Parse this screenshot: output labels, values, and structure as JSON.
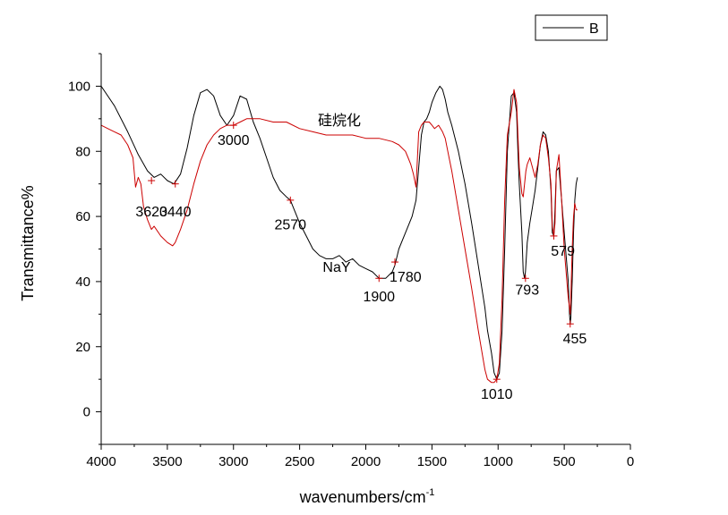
{
  "chart_data": {
    "type": "line",
    "title": "",
    "xlabel": "wavenumbers/cm",
    "xlabel_superscript": "-1",
    "ylabel": "Transmittance%",
    "xlim": [
      4000,
      0
    ],
    "ylim": [
      -10,
      110
    ],
    "x_ticks": [
      "4000",
      "3500",
      "3000",
      "2500",
      "2000",
      "1500",
      "1000",
      "500",
      "0"
    ],
    "y_ticks": [
      "0",
      "20",
      "40",
      "60",
      "80",
      "100"
    ],
    "legend": {
      "position": "top-right",
      "entries": [
        "B"
      ]
    },
    "series": [
      {
        "name": "NaY",
        "color": "#000000",
        "x": [
          4000,
          3900,
          3800,
          3720,
          3650,
          3600,
          3550,
          3500,
          3450,
          3400,
          3350,
          3300,
          3250,
          3200,
          3150,
          3100,
          3050,
          3000,
          2950,
          2900,
          2850,
          2800,
          2750,
          2700,
          2650,
          2600,
          2570,
          2550,
          2500,
          2450,
          2400,
          2350,
          2300,
          2250,
          2200,
          2150,
          2100,
          2050,
          2000,
          1950,
          1900,
          1850,
          1800,
          1780,
          1750,
          1700,
          1650,
          1620,
          1600,
          1580,
          1560,
          1540,
          1520,
          1500,
          1470,
          1440,
          1420,
          1400,
          1380,
          1350,
          1300,
          1250,
          1200,
          1150,
          1100,
          1080,
          1050,
          1030,
          1010,
          990,
          970,
          950,
          930,
          900,
          880,
          860,
          850,
          840,
          820,
          810,
          800,
          793,
          780,
          760,
          740,
          720,
          700,
          680,
          660,
          640,
          620,
          600,
          590,
          579,
          570,
          560,
          540,
          520,
          500,
          480,
          470,
          460,
          455,
          450,
          440,
          430,
          420,
          410,
          400
        ],
        "y": [
          100,
          94,
          86,
          79,
          74,
          72,
          73,
          71,
          70,
          73,
          81,
          91,
          98,
          99,
          97,
          91,
          88,
          91,
          97,
          96,
          89,
          84,
          78,
          72,
          68,
          66,
          65,
          63,
          58,
          54,
          50,
          48,
          47,
          47,
          48,
          46,
          47,
          45,
          44,
          43,
          41,
          41,
          43,
          45,
          50,
          55,
          60,
          65,
          75,
          85,
          89,
          90,
          92,
          95,
          98,
          100,
          99,
          96,
          92,
          88,
          80,
          70,
          58,
          45,
          32,
          25,
          18,
          12,
          10,
          12,
          25,
          50,
          80,
          97,
          98,
          92,
          80,
          70,
          55,
          43,
          41,
          43,
          52,
          58,
          63,
          68,
          75,
          82,
          86,
          85,
          80,
          68,
          55,
          54,
          62,
          74,
          75,
          65,
          55,
          45,
          40,
          30,
          27,
          29,
          40,
          55,
          65,
          70,
          72
        ]
      },
      {
        "name": "硅烷化",
        "color": "#cc0000",
        "x": [
          4000,
          3950,
          3900,
          3850,
          3800,
          3760,
          3740,
          3720,
          3700,
          3680,
          3650,
          3620,
          3600,
          3550,
          3500,
          3460,
          3440,
          3400,
          3350,
          3300,
          3250,
          3200,
          3150,
          3100,
          3050,
          3000,
          2950,
          2900,
          2850,
          2800,
          2700,
          2600,
          2500,
          2400,
          2300,
          2200,
          2100,
          2000,
          1900,
          1800,
          1750,
          1700,
          1680,
          1660,
          1640,
          1620,
          1600,
          1580,
          1560,
          1540,
          1520,
          1500,
          1480,
          1450,
          1420,
          1400,
          1380,
          1350,
          1300,
          1250,
          1200,
          1150,
          1100,
          1080,
          1050,
          1030,
          1010,
          990,
          970,
          950,
          930,
          900,
          880,
          860,
          850,
          840,
          820,
          810,
          800,
          790,
          780,
          760,
          740,
          720,
          700,
          680,
          660,
          640,
          620,
          600,
          590,
          579,
          570,
          560,
          540,
          520,
          500,
          480,
          470,
          460,
          455,
          450,
          440,
          430,
          420,
          410,
          400
        ],
        "y": [
          88,
          87,
          86,
          85,
          82,
          78,
          69,
          72,
          70,
          63,
          59,
          56,
          57,
          54,
          52,
          51,
          52,
          56,
          62,
          70,
          77,
          82,
          85,
          87,
          88,
          88,
          89,
          90,
          90,
          90,
          89,
          89,
          87,
          86,
          85,
          85,
          85,
          84,
          84,
          83,
          82,
          80,
          78,
          76,
          73,
          69,
          86,
          88,
          89,
          89,
          89,
          88,
          87,
          88,
          86,
          84,
          80,
          74,
          62,
          50,
          38,
          25,
          13,
          10,
          9,
          9,
          10,
          15,
          35,
          65,
          85,
          92,
          99,
          95,
          85,
          75,
          67,
          66,
          70,
          74,
          76,
          78,
          75,
          72,
          76,
          82,
          85,
          84,
          78,
          70,
          57,
          54,
          58,
          74,
          79,
          65,
          50,
          40,
          35,
          32,
          30,
          35,
          50,
          60,
          64,
          62,
          62
        ]
      }
    ],
    "annotations": [
      {
        "text": "3620",
        "x": 3620,
        "y": 60,
        "anchor": "middle"
      },
      {
        "text": "3440",
        "x": 3440,
        "y": 60,
        "anchor": "middle"
      },
      {
        "text": "3000",
        "x": 3000,
        "y": 82,
        "anchor": "middle"
      },
      {
        "text": "2570",
        "x": 2570,
        "y": 56,
        "anchor": "middle"
      },
      {
        "text": "NaY",
        "x": 2220,
        "y": 43,
        "anchor": "middle"
      },
      {
        "text": "1900",
        "x": 1900,
        "y": 34,
        "anchor": "middle"
      },
      {
        "text": "1780",
        "x": 1700,
        "y": 40,
        "anchor": "middle"
      },
      {
        "text": "硅烷化",
        "x": 2200,
        "y": 88,
        "anchor": "middle"
      },
      {
        "text": "1010",
        "x": 1010,
        "y": 4,
        "anchor": "middle"
      },
      {
        "text": "793",
        "x": 780,
        "y": 36,
        "anchor": "middle"
      },
      {
        "text": "579",
        "x": 510,
        "y": 48,
        "anchor": "middle"
      },
      {
        "text": "455",
        "x": 420,
        "y": 21,
        "anchor": "middle"
      }
    ],
    "markers": [
      {
        "x": 3620,
        "y": 71
      },
      {
        "x": 3440,
        "y": 70
      },
      {
        "x": 3000,
        "y": 88
      },
      {
        "x": 2570,
        "y": 65
      },
      {
        "x": 1900,
        "y": 41
      },
      {
        "x": 1780,
        "y": 46
      },
      {
        "x": 1010,
        "y": 10
      },
      {
        "x": 793,
        "y": 41
      },
      {
        "x": 579,
        "y": 54
      },
      {
        "x": 455,
        "y": 27
      }
    ]
  }
}
